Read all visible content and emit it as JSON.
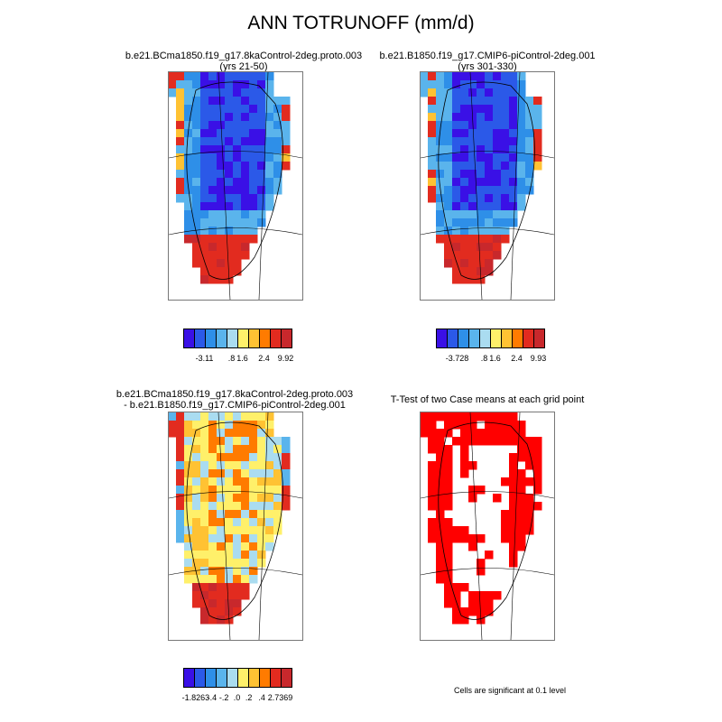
{
  "title": "ANN TOTRUNOFF (mm/d)",
  "panels": [
    {
      "title_line1": "b.e21.BCma1850.f19_g17.8kaControl-2deg.proto.003",
      "title_line2": "(yrs 21-50)"
    },
    {
      "title_line1": "b.e21.B1850.f19_g17.CMIP6-piControl-2deg.001",
      "title_line2": "(yrs 301-330)"
    },
    {
      "title_line1": "b.e21.BCma1850.f19_g17.8kaControl-2deg.proto.003",
      "title_line2": "- b.e21.B1850.f19_g17.CMIP6-piControl-2deg.001"
    },
    {
      "title_line1": "T-Test of two Case means at each grid point",
      "title_line2": ""
    }
  ],
  "colorbars": [
    {
      "colors": [
        "#3a10e6",
        "#2b59e8",
        "#2e8fe8",
        "#5ab4ec",
        "#aadcf0",
        "#fff06a",
        "#ffc233",
        "#ff7b00",
        "#e22b1f",
        "#c8282c"
      ],
      "labels": [
        "-3.11",
        ".8",
        "1.6",
        "2.4",
        "9.92"
      ]
    },
    {
      "colors": [
        "#3a10e6",
        "#2b59e8",
        "#2e8fe8",
        "#5ab4ec",
        "#aadcf0",
        "#fff06a",
        "#ffc233",
        "#ff7b00",
        "#e22b1f",
        "#c8282c"
      ],
      "labels": [
        "-3.728",
        ".8",
        "1.6",
        "2.4",
        "9.93"
      ]
    },
    {
      "colors": [
        "#3a10e6",
        "#2b59e8",
        "#2e8fe8",
        "#5ab4ec",
        "#aadcf0",
        "#fff06a",
        "#ffc233",
        "#ff7b00",
        "#e22b1f",
        "#c8282c"
      ],
      "labels": [
        "-1.8263",
        "-.4",
        "-.2",
        ".0",
        ".2",
        ".4",
        "2.7369"
      ]
    }
  ],
  "significance_color": "#ff0000",
  "footnote": "Cells are significant at 0.1 level"
}
